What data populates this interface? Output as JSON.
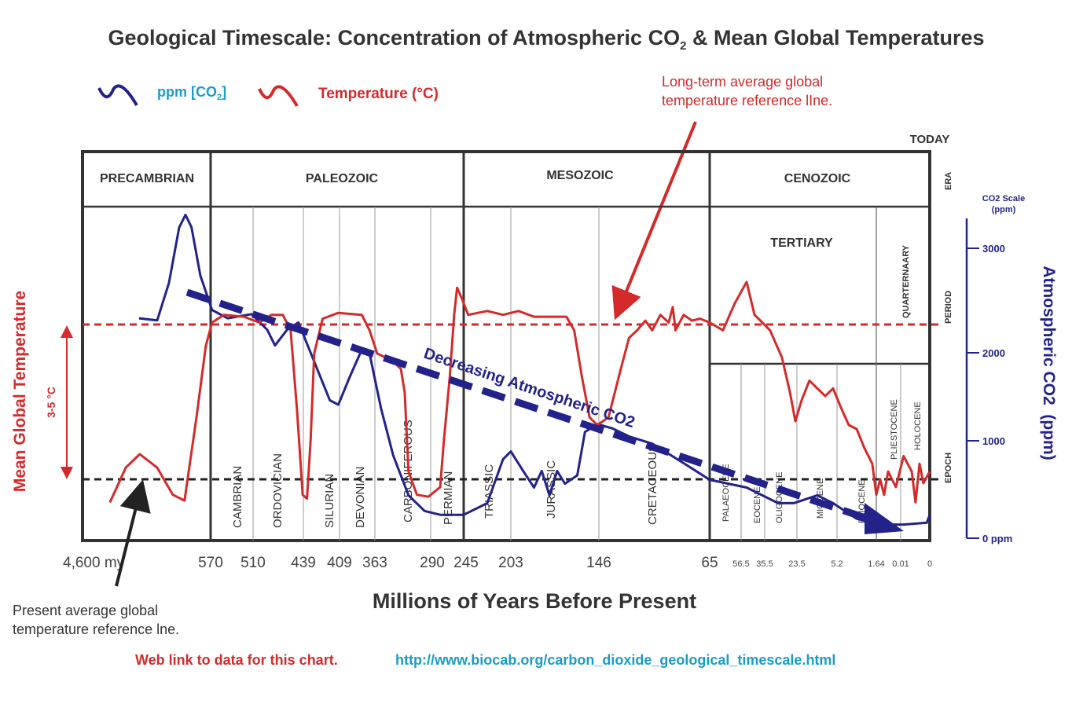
{
  "title": "Geological Timescale: Concentration of Atmospheric CO",
  "title_sub": "2",
  "title_tail": " & Mean Global Temperatures",
  "legend": {
    "co2_label": "ppm [CO",
    "co2_sub": "2",
    "co2_close": "]",
    "temp_label": "Temperature (°C)"
  },
  "annotations": {
    "long_term_line1": "Long-term average global",
    "long_term_line2": "temperature reference lIne.",
    "present_line1": "Present average global",
    "present_line2": "temperature reference lne.",
    "decreasing": "Decreasing Atmospheric CO2",
    "range": "3-5 °C",
    "today": "TODAY"
  },
  "row_labels": {
    "era": "ERA",
    "period": "PERIOD",
    "epoch": "EPOCH"
  },
  "eras": [
    "PRECAMBRIAN",
    "PALEOZOIC",
    "MESOZOIC",
    "CENOZOIC"
  ],
  "periods": [
    "CAMBRIAN",
    "ORDOVICIAN",
    "SILURIAN",
    "DEVONIAN",
    "CARBONIFEROUS",
    "PERMIAN",
    "TRIASSIC",
    "JURASSIC",
    "CRETACEOUS",
    "TERTIARY",
    "QUARTERNAARY"
  ],
  "epochs": [
    "PALAEOCENE",
    "EOCENE",
    "OLIGOCENE",
    "MIOCENE",
    "PLIOCENE",
    "PLIESTOCENE",
    "HOLOCENE"
  ],
  "footer": {
    "link_label": "Web link to data for this chart.",
    "link_url": "http://www.biocab.org/carbon_dioxide_geological_timescale.html"
  },
  "colors": {
    "co2": "#22228a",
    "temperature": "#d42a2a",
    "link": "#1a9cc8",
    "reference": "#222222"
  },
  "chart_data": {
    "type": "line",
    "title": "Geological Timescale: Concentration of Atmospheric CO2 & Mean Global Temperatures",
    "xlabel": "Millions of Years Before Present",
    "ylabel_left": "Mean Global Temperature",
    "ylabel_right": "Atmospheric CO2  (ppm)",
    "right_scale_title": "CO2 Scale (ppm)",
    "x_ticks": [
      "4,600 my",
      "570",
      "510",
      "439",
      "409",
      "363",
      "290",
      "245",
      "203",
      "146",
      "65",
      "56.5",
      "35.5",
      "23.5",
      "5.2",
      "1.64",
      "0.01",
      "0"
    ],
    "x_tick_values": [
      4600,
      570,
      510,
      439,
      409,
      363,
      290,
      245,
      203,
      146,
      65,
      56.5,
      35.5,
      23.5,
      5.2,
      1.64,
      0.01,
      0
    ],
    "x_scale": "piecewise (non-linear, by geological boundary)",
    "y_right_ticks": [
      "3000",
      "2000",
      "1000",
      "0 ppm"
    ],
    "y_right_tick_values": [
      3000,
      2000,
      1000,
      0
    ],
    "temperature_units": "°C relative to present average (estimated from 3-5 °C span)",
    "reference_lines": [
      {
        "name": "Long-term average global temperature",
        "temp": 4.0,
        "style": "dashed",
        "color": "#d42a2a"
      },
      {
        "name": "Present average global temperature",
        "temp": 0,
        "style": "dashed",
        "color": "#222222"
      }
    ],
    "trend": {
      "label": "Decreasing Atmospheric CO2",
      "from": [
        2600,
        2600
      ],
      "to": [
        1.0,
        70
      ]
    },
    "series": [
      {
        "name": "ppm [CO2]",
        "axis": "right",
        "color": "#22228a",
        "x": [
          2820,
          2250,
          1880,
          1560,
          1360,
          1170,
          895,
          568,
          546,
          512,
          490,
          479,
          462,
          446,
          430,
          417,
          410,
          396,
          380,
          370,
          355,
          339,
          319,
          298,
          277,
          245,
          224,
          210,
          203,
          195,
          188,
          183,
          178,
          173,
          168,
          160,
          155,
          147,
          136,
          124,
          107,
          84,
          65,
          51.6,
          30.5,
          24.7,
          14.2,
          7,
          3.42,
          1.38,
          0.009,
          0.001,
          0
        ],
        "y": [
          2330,
          2310,
          2670,
          3200,
          3320,
          3200,
          2740,
          2410,
          2330,
          2370,
          2220,
          2070,
          2220,
          2290,
          1900,
          1460,
          1410,
          1720,
          2030,
          1990,
          1370,
          850,
          440,
          280,
          240,
          240,
          360,
          810,
          890,
          690,
          520,
          690,
          440,
          690,
          560,
          645,
          1100,
          1190,
          1140,
          1050,
          970,
          770,
          600,
          520,
          360,
          360,
          440,
          360,
          200,
          140,
          140,
          160,
          240
        ]
      },
      {
        "name": "Temperature (°C)",
        "axis": "left",
        "color": "#d42a2a",
        "x": [
          3740,
          3240,
          2800,
          2250,
          1760,
          1390,
          1015,
          720,
          568,
          551,
          523,
          501,
          484,
          468,
          457,
          448,
          440,
          436,
          433,
          430,
          423,
          410,
          380,
          370,
          360,
          339,
          329,
          324,
          319,
          308,
          293,
          277,
          272,
          264,
          258,
          254,
          247,
          241,
          224,
          210,
          198,
          188,
          167,
          162,
          157,
          152,
          147,
          139,
          130,
          124,
          118,
          112,
          107,
          101,
          95,
          92,
          90,
          84,
          78,
          72,
          65,
          61.4,
          58.2,
          51.6,
          44.6,
          37.6,
          33.5,
          29.1,
          26.1,
          24.1,
          21.3,
          17.8,
          14.2,
          10.6,
          7.0,
          4.84,
          4.13,
          3.42,
          2.71,
          2.0,
          1.64,
          1.38,
          1.12,
          0.85,
          0.33,
          0.009,
          0.0062,
          0.0049,
          0.0035,
          0.0022,
          0
        ],
        "y": [
          -0.6,
          0.3,
          0.65,
          0.3,
          -0.4,
          -0.55,
          1.6,
          3.45,
          4.05,
          4.25,
          4.2,
          4.05,
          4.25,
          4.25,
          3.85,
          1.8,
          -0.4,
          -0.5,
          1.0,
          3.25,
          4.15,
          4.3,
          4.25,
          3.85,
          3.25,
          3.05,
          2.85,
          2.25,
          0.2,
          -0.4,
          -0.45,
          -0.2,
          1.0,
          2.65,
          4.25,
          4.95,
          4.65,
          4.25,
          4.35,
          4.25,
          4.35,
          4.2,
          4.2,
          3.85,
          2.65,
          1.6,
          1.4,
          1.6,
          2.85,
          3.65,
          3.85,
          4.1,
          3.85,
          4.25,
          4.05,
          4.45,
          3.85,
          4.25,
          4.1,
          4.15,
          4.05,
          3.85,
          4.55,
          5.1,
          4.25,
          4.05,
          3.85,
          3.15,
          2.25,
          1.5,
          2.05,
          2.55,
          2.35,
          2.15,
          2.35,
          1.85,
          1.4,
          1.3,
          0.8,
          0.4,
          -0.4,
          0,
          -0.4,
          0.2,
          -0.2,
          0.6,
          0.2,
          -0.6,
          0.4,
          -0.1,
          0.2
        ]
      }
    ]
  }
}
